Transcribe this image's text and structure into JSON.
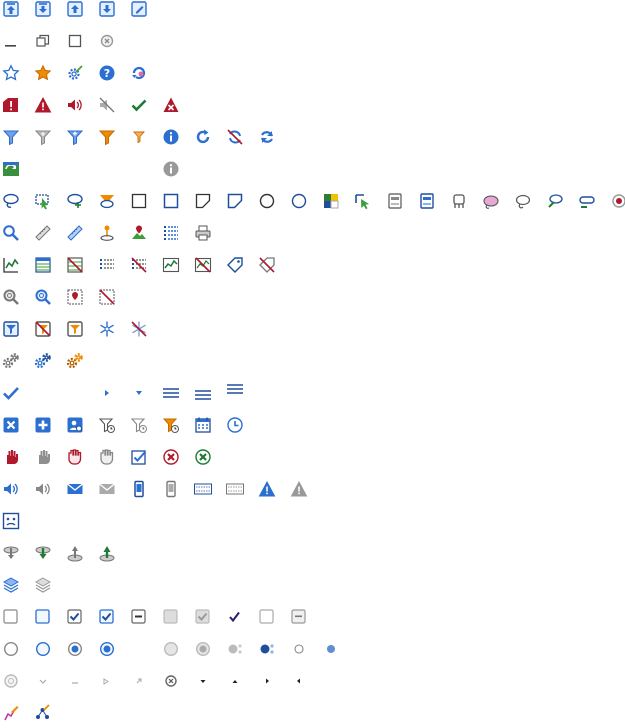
{
  "palette": {
    "blue": "#2b6fd0",
    "blue_dark": "#1f4f9a",
    "red": "#b0182b",
    "orange": "#f08a00",
    "green": "#1e7a35",
    "gray": "#7b7b7b",
    "light_gray": "#bdbdbd"
  },
  "rows": [
    [
      "upload-top-icon",
      "upload-up-icon",
      "upload-icon",
      "download-icon",
      "edit-form-icon"
    ],
    [
      "minimize-icon",
      "restore-icon",
      "maximize-icon",
      "close-gray-icon"
    ],
    [
      "star-outline-icon",
      "star-filled-icon",
      "settings-wand-icon",
      "help-icon",
      "refresh-ink-icon"
    ],
    [
      "warning-table-icon",
      "warning-icon",
      "sound-on-icon",
      "sound-off-icon",
      "check-icon",
      "error-icon"
    ],
    [
      "filter-icon",
      "filter-gray-icon",
      "filter-add-icon",
      "filter-orange-icon",
      "filter-small-icon",
      "info-icon",
      "redo-icon",
      "no-refresh-icon",
      "refresh-icon"
    ],
    [
      "update-icon",
      "",
      "",
      "",
      "",
      "info-gray-icon"
    ],
    [
      "lasso-icon",
      "select-arrow-icon",
      "lasso-plus-icon",
      "lasso-orange-icon",
      "square-icon",
      "square-blue-icon",
      "polygon-icon",
      "polygon-blue-icon",
      "circle-icon",
      "circle-blue-icon",
      "map-color-icon",
      "select-pointer-icon",
      "drive-icon",
      "drive-blue-icon",
      "gas-icon",
      "cloud-pink-icon",
      "lasso-draw-icon",
      "lasso-green-icon",
      "lasso-line-icon",
      "close-red-icon"
    ],
    [
      "search-icon",
      "ruler-icon",
      "ruler-blue-icon",
      "pin-person-icon",
      "map-pin-icon",
      "list-icon",
      "printer-icon"
    ],
    [
      "chart-line-icon",
      "table-icon",
      "table-off-icon",
      "list-dots-icon",
      "list-off-icon",
      "chart-frame-icon",
      "chart-off-icon",
      "tag-icon",
      "tag-off-icon"
    ],
    [
      "zoom-gray-icon",
      "zoom-blue-icon",
      "marker-box-icon",
      "marker-off-icon"
    ],
    [
      "filter-box-icon",
      "filter-box-off-icon",
      "filter-box-orange-icon",
      "snowflake-icon",
      "snowflake-off-icon"
    ],
    [
      "gears-icon",
      "gears-blue-icon",
      "gears-orange-icon"
    ],
    [
      "checkmark-blue-icon",
      "",
      "",
      "arrow-right-small-icon",
      "arrow-down-small-icon",
      "menu-lines-icon",
      "menu-lines-low-icon",
      "menu-lines-high-icon"
    ],
    [
      "close-square-icon",
      "plus-square-icon",
      "user-square-icon",
      "filter-clock-icon",
      "filter-clock-gray-icon",
      "filter-orange-clock-icon",
      "calendar-icon",
      "clock-icon"
    ],
    [
      "hand-red-icon",
      "hand-gray-icon",
      "hand-red-outline-icon",
      "hand-gray-outline-icon",
      "checkbox-blue-icon",
      "cancel-red-icon",
      "cancel-green-icon"
    ],
    [
      "speaker-blue-icon",
      "speaker-gray-icon",
      "mail-blue-icon",
      "mail-gray-icon",
      "phone-blue-icon",
      "phone-gray-icon",
      "alert-blue-icon",
      "alert-gray-icon",
      "warning-blue-icon",
      "warning-gray-icon"
    ],
    [
      "map-face-icon"
    ],
    [
      "pin-down-gray-icon",
      "pin-down-green-icon",
      "pin-up-gray-icon",
      "pin-up-green-icon"
    ],
    [
      "layers-blue-icon",
      "layers-gray-icon"
    ],
    [
      "checkbox-empty-icon",
      "checkbox-hover-icon",
      "checkbox-checked-icon",
      "checkbox-checked-hover-icon",
      "checkbox-indeterminate-icon",
      "checkbox-disabled-icon",
      "checkbox-disabled-checked-icon",
      "check-purple-icon",
      "checkbox-empty-2-icon",
      "checkbox-indeterminate-gray-icon"
    ],
    [
      "radio-empty-icon",
      "radio-hover-icon",
      "radio-checked-icon",
      "radio-checked-hover-icon",
      "",
      "radio-disabled-icon",
      "radio-disabled-checked-icon",
      "dots-gray-icon",
      "dots-blue-icon",
      "radio-small-icon",
      "dot-blue-icon"
    ],
    [
      "clear-circle-icon",
      "chevron-down-tiny-icon",
      "dash-tiny-icon",
      "arrow-right-tiny-icon",
      "arrow-diagonal-tiny-icon",
      "close-circle-small-icon",
      "caret-down-icon",
      "caret-up-icon",
      "caret-right-icon",
      "caret-left-icon"
    ],
    [
      "edit-chart-pink-icon",
      "edit-network-icon"
    ]
  ]
}
